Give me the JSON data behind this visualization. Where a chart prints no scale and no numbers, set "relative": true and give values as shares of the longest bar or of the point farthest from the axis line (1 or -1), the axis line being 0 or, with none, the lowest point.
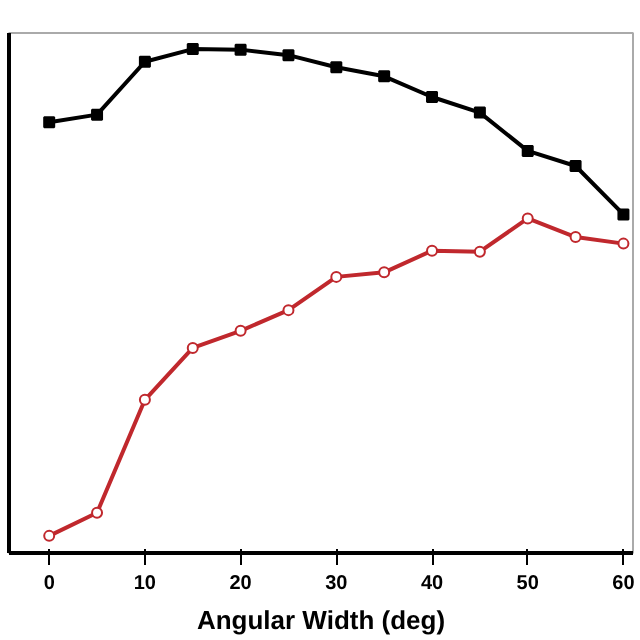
{
  "chart_data": {
    "type": "line",
    "xlabel": "Angular Width (deg)",
    "relative": true,
    "x": [
      0,
      5,
      10,
      15,
      20,
      25,
      30,
      35,
      40,
      45,
      50,
      55,
      60
    ],
    "xlim": [
      -4.2,
      61
    ],
    "xticks": [
      0,
      10,
      20,
      30,
      40,
      50,
      60
    ],
    "series": [
      {
        "color": "#000000",
        "marker": "square",
        "values": [
          0.855,
          0.87,
          0.975,
          1,
          0.999,
          0.988,
          0.964,
          0.946,
          0.905,
          0.874,
          0.798,
          0.768,
          0.672
        ]
      },
      {
        "color": "#c0282d",
        "marker": "circle",
        "values": [
          0.034,
          0.08,
          0.304,
          0.407,
          0.441,
          0.482,
          0.548,
          0.557,
          0.6,
          0.598,
          0.664,
          0.627,
          0.614
        ]
      }
    ],
    "grid": false,
    "line_style": "solid"
  }
}
